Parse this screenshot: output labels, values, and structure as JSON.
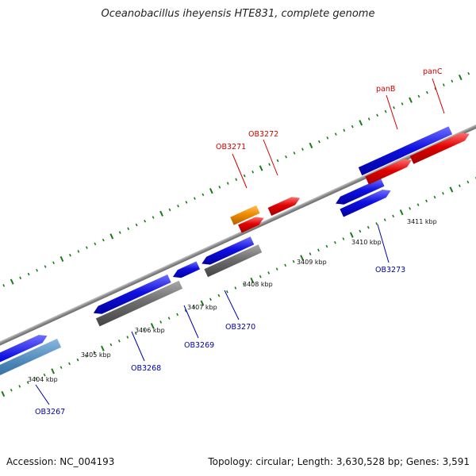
{
  "title": "Oceanobacillus iheyensis HTE831, complete genome",
  "footer": {
    "accession": "Accession: NC_004193",
    "stats": "Topology: circular; Length: 3,630,528 bp; Genes: 3,591"
  },
  "kbp_labels": [
    "3404 kbp",
    "3405 kbp",
    "3406 kbp",
    "3407 kbp",
    "3408 kbp",
    "3409 kbp",
    "3410 kbp",
    "3411 kbp"
  ],
  "gene_labels": {
    "OB3267": "OB3267",
    "OB3268": "OB3268",
    "OB3269": "OB3269",
    "OB3270": "OB3270",
    "OB3271": "OB3271",
    "OB3272": "OB3272",
    "OB3273": "OB3273",
    "panB": "panB",
    "panC": "panC"
  },
  "colors": {
    "gene_blue": "#1010e0",
    "gene_red": "#e00000",
    "gene_orange": "#f08c00",
    "gene_gray": "#6e6e6e",
    "gene_steel": "#4682b4",
    "backbone": "#8a8a8a",
    "tick_green": "#1a7a1a",
    "label_red": "#d00000",
    "label_blue": "#0000aa"
  }
}
